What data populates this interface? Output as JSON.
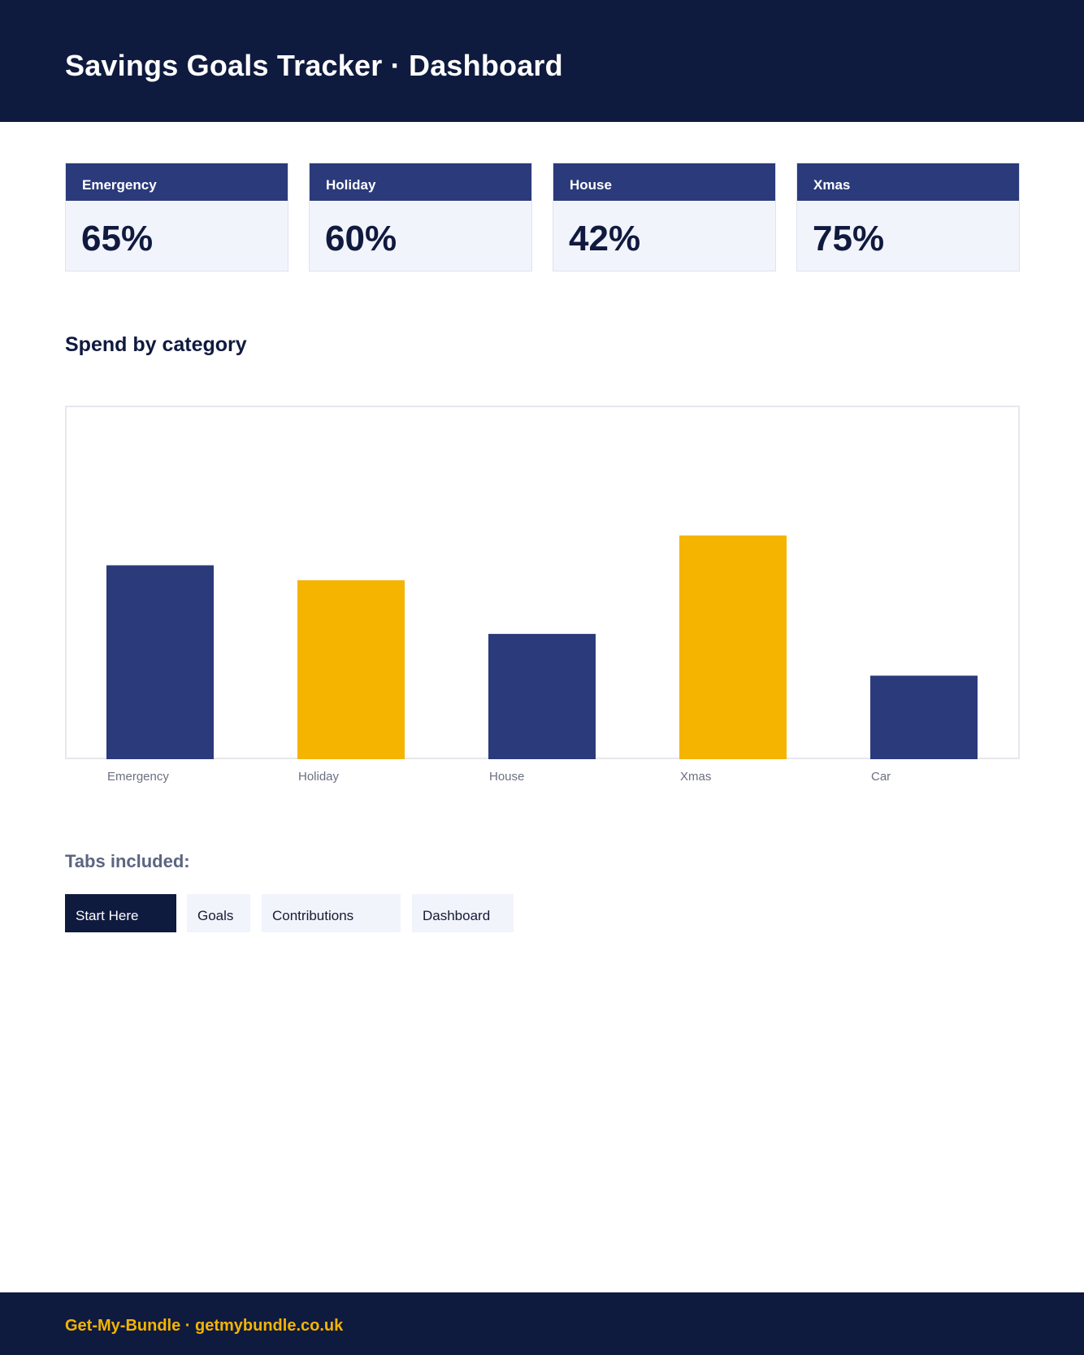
{
  "header": {
    "title": "Savings Goals Tracker · Dashboard"
  },
  "cards": [
    {
      "label": "Emergency",
      "value": "65%"
    },
    {
      "label": "Holiday",
      "value": "60%"
    },
    {
      "label": "House",
      "value": "42%"
    },
    {
      "label": "Xmas",
      "value": "75%"
    }
  ],
  "section": {
    "title": "Spend by category"
  },
  "chart_data": {
    "type": "bar",
    "categories": [
      "Emergency",
      "Holiday",
      "House",
      "Xmas",
      "Car"
    ],
    "values": [
      65,
      60,
      42,
      75,
      28
    ],
    "colors": [
      "#2b3a7a",
      "#f4b400",
      "#2b3a7a",
      "#f4b400",
      "#2b3a7a"
    ],
    "title": "",
    "xlabel": "",
    "ylabel": "",
    "grid": false
  },
  "tabs_section": {
    "title": "Tabs included:",
    "tabs": [
      {
        "label": "Start Here",
        "active": true
      },
      {
        "label": "Goals",
        "active": false
      },
      {
        "label": "Contributions",
        "active": false
      },
      {
        "label": "Dashboard",
        "active": false
      }
    ]
  },
  "footer": {
    "text": "Get-My-Bundle · getmybundle.co.uk"
  },
  "theme": {
    "navy": "#0f1a3f",
    "indigo": "#2b3a7a",
    "gold": "#f4b400",
    "card_bg": "#f2f4fc"
  }
}
